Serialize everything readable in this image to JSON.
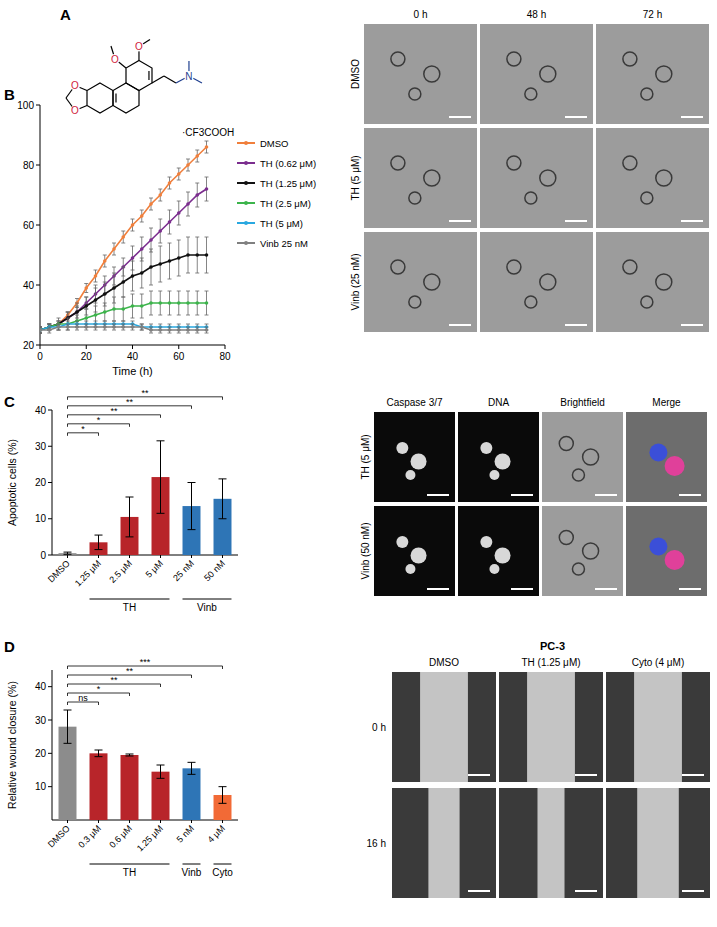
{
  "panel_labels": [
    "A",
    "B",
    "C",
    "D"
  ],
  "structure": {
    "atoms": [
      "O",
      "O",
      "O",
      "O",
      "N"
    ],
    "salt": "·CF3COOH"
  },
  "image_panels": {
    "B": {
      "columns": [
        "0 h",
        "48 h",
        "72 h"
      ],
      "rows": [
        "DMSO",
        "TH (5 μM)",
        "Vinb (25 nM)"
      ]
    },
    "C": {
      "columns": [
        "Caspase 3/7",
        "DNA",
        "Brightfield",
        "Merge"
      ],
      "rows": [
        "TH (5 μM)",
        "Vinb (50 nM)"
      ]
    },
    "D": {
      "title": "PC-3",
      "columns": [
        "DMSO",
        "TH (1.25 μM)",
        "Cyto (4 μM)"
      ],
      "rows": [
        "0 h",
        "16 h"
      ]
    }
  },
  "chart_data": [
    {
      "type": "line",
      "x_label": "Time (h)",
      "marker": "circle",
      "legend": "right",
      "x": [
        0,
        4,
        8,
        12,
        16,
        20,
        24,
        28,
        32,
        36,
        40,
        44,
        48,
        52,
        56,
        60,
        64,
        68,
        72
      ],
      "xlim": [
        0,
        80
      ],
      "xticks": [
        0,
        20,
        40,
        60,
        80
      ],
      "ylim": [
        20,
        100
      ],
      "yticks": [
        20,
        40,
        60,
        80,
        100
      ],
      "series": [
        {
          "name": "DMSO",
          "color": "#f07f3c",
          "values": [
            25,
            26,
            27,
            30,
            34,
            39,
            43,
            48,
            52,
            56,
            60,
            63,
            67,
            70,
            74,
            77,
            80,
            83,
            86
          ],
          "errors": [
            1,
            1,
            1,
            1,
            1.5,
            1.5,
            2,
            2,
            2,
            2,
            2,
            2,
            2,
            2,
            2,
            2,
            2,
            2,
            2
          ]
        },
        {
          "name": "TH (0.62 μM)",
          "color": "#7b2d8e",
          "values": [
            25,
            26,
            27,
            29,
            31,
            34,
            37,
            40,
            43,
            46,
            49,
            52,
            55,
            58,
            61,
            64,
            67,
            70,
            72
          ],
          "errors": [
            1,
            1,
            1,
            2,
            2,
            2,
            3,
            3,
            3,
            3,
            4,
            4,
            4,
            4,
            4,
            4,
            4,
            4,
            4
          ]
        },
        {
          "name": "TH (1.25 μM)",
          "color": "#111111",
          "values": [
            25,
            26,
            27,
            29,
            31,
            33,
            35,
            37,
            39,
            41,
            43,
            44,
            46,
            47,
            48,
            49,
            50,
            50,
            50
          ],
          "errors": [
            1,
            1,
            2,
            2,
            3,
            3,
            4,
            4,
            5,
            5,
            5,
            5,
            6,
            6,
            6,
            6,
            6,
            6,
            6
          ]
        },
        {
          "name": "TH (2.5 μM)",
          "color": "#3cb44b",
          "values": [
            25,
            26,
            27,
            27,
            28,
            29,
            30,
            31,
            32,
            32,
            33,
            33,
            34,
            34,
            34,
            34,
            34,
            34,
            34
          ],
          "errors": [
            1,
            1,
            1,
            2,
            2,
            3,
            3,
            3,
            4,
            4,
            4,
            4,
            4,
            4,
            4,
            4,
            4,
            4,
            4
          ]
        },
        {
          "name": "TH (5 μM)",
          "color": "#29a8e0",
          "values": [
            25,
            26,
            26,
            27,
            27,
            27,
            27,
            27,
            27,
            27,
            27,
            26,
            26,
            26,
            26,
            26,
            26,
            26,
            26
          ],
          "errors": [
            1,
            1,
            1,
            1,
            1,
            1,
            1,
            1,
            1,
            1,
            1,
            1,
            1,
            1,
            1,
            1,
            1,
            1,
            1
          ]
        },
        {
          "name": "Vinb 25 nM",
          "color": "#808080",
          "values": [
            25,
            25,
            26,
            26,
            26,
            26,
            26,
            26,
            26,
            26,
            26,
            26,
            25,
            25,
            25,
            25,
            25,
            25,
            25
          ],
          "errors": [
            1,
            1,
            1,
            1,
            1,
            1,
            1,
            1,
            1,
            1,
            1,
            1,
            1,
            1,
            1,
            1,
            1,
            1,
            1
          ]
        }
      ]
    },
    {
      "type": "bar",
      "y_label": "Apoptotic cells (%)",
      "categories": [
        "DMSO",
        "1.25 μM",
        "2.5 μM",
        "5 μM",
        "25 nM",
        "50 nM"
      ],
      "values": [
        0.5,
        3.5,
        10.5,
        21.5,
        13.5,
        15.5
      ],
      "errors": [
        0.3,
        2,
        5.5,
        10,
        6.5,
        5.5
      ],
      "colors": [
        "#8c8c8c",
        "#b8252a",
        "#b8252a",
        "#b8252a",
        "#2e75b6",
        "#2e75b6"
      ],
      "groups": [
        null,
        "TH",
        "TH",
        "TH",
        "Vinb",
        "Vinb"
      ],
      "significance": [
        null,
        "*",
        "*",
        "**",
        "**",
        "**"
      ],
      "ylim": [
        0,
        40
      ],
      "yticks": [
        0,
        10,
        20,
        30,
        40
      ]
    },
    {
      "type": "bar",
      "y_label": "Relative wound closure (%)",
      "categories": [
        "DMSO",
        "0.3 μM",
        "0.6 μM",
        "1.25 μM",
        "5 nM",
        "4 μM"
      ],
      "values": [
        28,
        20,
        19.5,
        14.5,
        15.5,
        7.5
      ],
      "errors": [
        5,
        1,
        0.3,
        2,
        1.8,
        2.5
      ],
      "colors": [
        "#8c8c8c",
        "#b8252a",
        "#b8252a",
        "#b8252a",
        "#2e75b6",
        "#f26a36"
      ],
      "groups": [
        null,
        "TH",
        "TH",
        "TH",
        "Vinb",
        "Cyto"
      ],
      "significance": [
        null,
        "ns",
        "*",
        "**",
        "**",
        "***"
      ],
      "ylim": [
        0,
        45
      ],
      "yticks": [
        10,
        20,
        30,
        40
      ]
    }
  ]
}
